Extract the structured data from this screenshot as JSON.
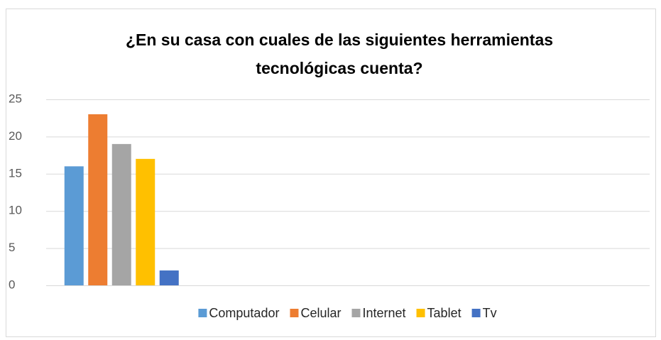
{
  "chart_data": {
    "type": "bar",
    "title": "¿En su casa con cuales de las siguientes herramientas tecnológicas cuenta?",
    "title_lines": [
      "¿En su casa con cuales de las siguientes herramientas",
      "tecnológicas cuenta?"
    ],
    "categories": [
      null,
      null,
      null,
      null
    ],
    "series": [
      {
        "name": "Computador",
        "color": "#5b9bd5",
        "values": [
          16,
          null,
          null,
          null
        ]
      },
      {
        "name": "Celular",
        "color": "#ed7d31",
        "values": [
          23,
          null,
          null,
          null
        ]
      },
      {
        "name": "Internet",
        "color": "#a5a5a5",
        "values": [
          19,
          null,
          null,
          null
        ]
      },
      {
        "name": "Tablet",
        "color": "#ffc000",
        "values": [
          17,
          null,
          null,
          null
        ]
      },
      {
        "name": "Tv",
        "color": "#4472c4",
        "values": [
          2,
          null,
          null,
          null
        ]
      }
    ],
    "ylim": [
      0,
      25
    ],
    "yticks": [
      0,
      5,
      10,
      15,
      20,
      25
    ],
    "grid": true,
    "legend": "bottom"
  }
}
